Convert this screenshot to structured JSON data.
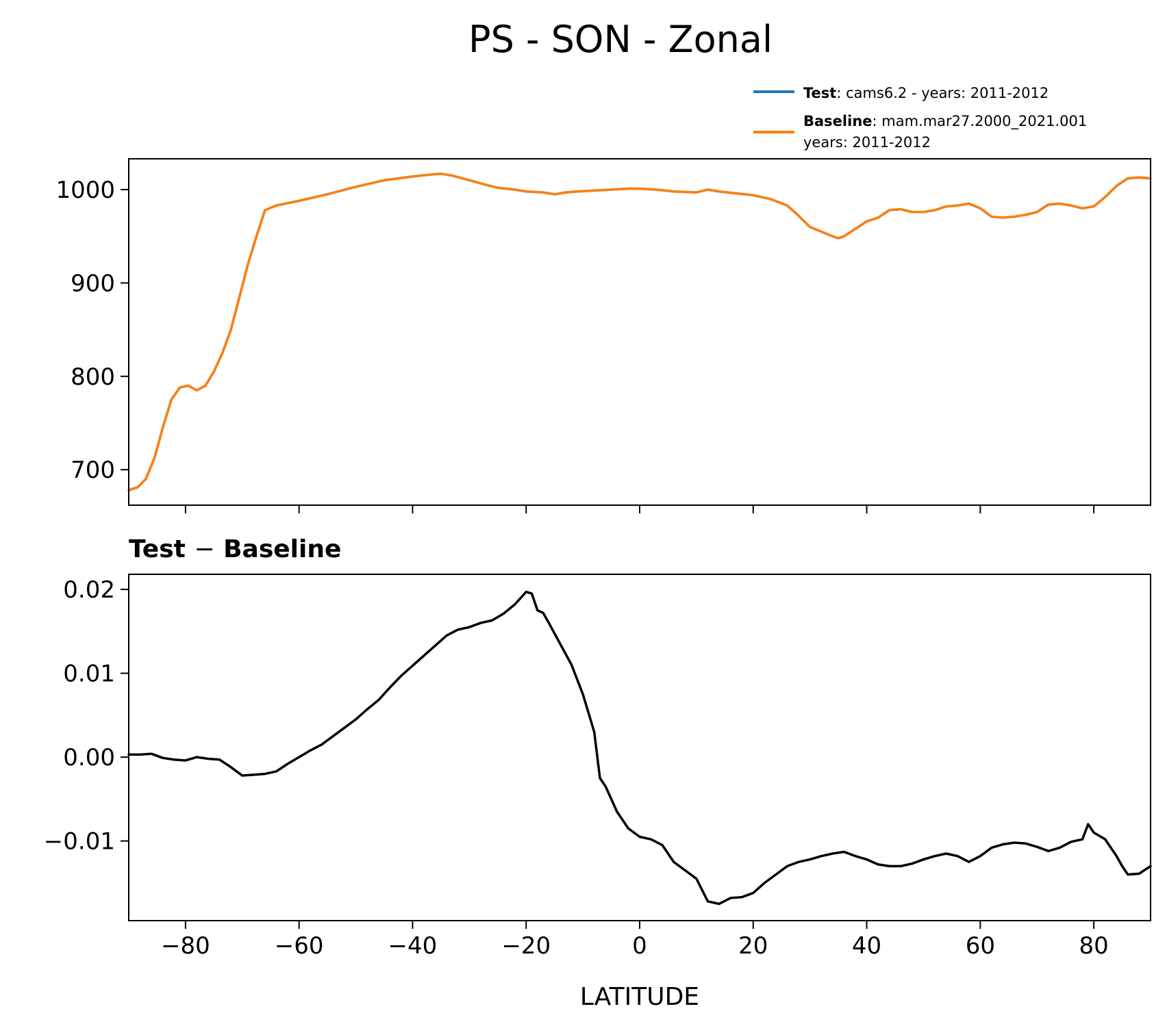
{
  "figure": {
    "title": "PS - SON - Zonal"
  },
  "legend": {
    "test_label": "Test",
    "test_text": ": cams6.2 - years: 2011-2012",
    "baseline_label": "Baseline",
    "baseline_text": ": mam.mar27.2000_2021.001",
    "baseline_text2": "years: 2011-2012"
  },
  "diff_title_test": "Test",
  "diff_title_minus": "−",
  "diff_title_baseline": "Baseline",
  "chart_data": [
    {
      "type": "line",
      "name": "zonal-ps",
      "title": "PS - SON - Zonal",
      "xlabel": "",
      "ylabel": "",
      "xlim": [
        -90,
        90
      ],
      "ylim": [
        662,
        1033
      ],
      "xticks": [
        -80,
        -60,
        -40,
        -20,
        0,
        20,
        40,
        60,
        80
      ],
      "yticks": [
        700,
        800,
        900,
        1000
      ],
      "ytick_labels": [
        "700",
        "800",
        "900",
        "1000"
      ],
      "legend_position": "top-right",
      "series": [
        {
          "name": "Test",
          "color": "#1f77b4",
          "x": [
            -90,
            -88.5,
            -87,
            -85.5,
            -84,
            -82.5,
            -81,
            -79.5,
            -78,
            -76.5,
            -75,
            -73.5,
            -72,
            -70.5,
            -69,
            -67.5,
            -66,
            -64,
            -60,
            -55,
            -50,
            -45,
            -40,
            -37,
            -35,
            -33,
            -30,
            -27,
            -25,
            -22,
            -20,
            -17,
            -15,
            -13,
            -11,
            -8,
            -5,
            -2,
            0,
            3,
            6,
            10,
            12,
            14,
            17,
            20,
            23,
            26,
            28,
            30,
            32,
            34,
            35,
            36,
            38,
            40,
            42,
            44,
            46,
            48,
            50,
            52,
            54,
            56,
            58,
            60,
            62,
            64,
            66,
            68,
            70,
            72,
            74,
            76,
            78,
            80,
            82,
            84,
            86,
            88,
            90
          ],
          "y": [
            678,
            681,
            690,
            712,
            745,
            775,
            788,
            790,
            785,
            790,
            805,
            825,
            850,
            885,
            920,
            950,
            978,
            983,
            988,
            995,
            1003,
            1010,
            1014,
            1016,
            1017,
            1015,
            1010,
            1005,
            1002,
            1000,
            998,
            997,
            995,
            997,
            998,
            999,
            1000,
            1001,
            1001,
            1000,
            998,
            997,
            1000,
            998,
            996,
            994,
            990,
            983,
            972,
            960,
            955,
            950,
            948,
            950,
            958,
            966,
            970,
            978,
            979,
            976,
            976,
            978,
            982,
            983,
            985,
            980,
            971,
            970,
            971,
            973,
            976,
            984,
            985,
            983,
            980,
            982,
            992,
            1004,
            1012,
            1013,
            1012
          ]
        },
        {
          "name": "Baseline",
          "color": "#ff7f0e",
          "x": [
            -90,
            -88.5,
            -87,
            -85.5,
            -84,
            -82.5,
            -81,
            -79.5,
            -78,
            -76.5,
            -75,
            -73.5,
            -72,
            -70.5,
            -69,
            -67.5,
            -66,
            -64,
            -60,
            -55,
            -50,
            -45,
            -40,
            -37,
            -35,
            -33,
            -30,
            -27,
            -25,
            -22,
            -20,
            -17,
            -15,
            -13,
            -11,
            -8,
            -5,
            -2,
            0,
            3,
            6,
            10,
            12,
            14,
            17,
            20,
            23,
            26,
            28,
            30,
            32,
            34,
            35,
            36,
            38,
            40,
            42,
            44,
            46,
            48,
            50,
            52,
            54,
            56,
            58,
            60,
            62,
            64,
            66,
            68,
            70,
            72,
            74,
            76,
            78,
            80,
            82,
            84,
            86,
            88,
            90
          ],
          "y": [
            678,
            681,
            690,
            712,
            745,
            775,
            788,
            790,
            785,
            790,
            805,
            825,
            850,
            885,
            920,
            950,
            978,
            983,
            988,
            995,
            1003,
            1010,
            1014,
            1016,
            1017,
            1015,
            1010,
            1005,
            1002,
            1000,
            998,
            997,
            995,
            997,
            998,
            999,
            1000,
            1001,
            1001,
            1000,
            998,
            997,
            1000,
            998,
            996,
            994,
            990,
            983,
            972,
            960,
            955,
            950,
            948,
            950,
            958,
            966,
            970,
            978,
            979,
            976,
            976,
            978,
            982,
            983,
            985,
            980,
            971,
            970,
            971,
            973,
            976,
            984,
            985,
            983,
            980,
            982,
            992,
            1004,
            1012,
            1013,
            1012
          ]
        }
      ]
    },
    {
      "type": "line",
      "name": "difference",
      "title": "Test − Baseline",
      "xlabel": "LATITUDE",
      "ylabel": "",
      "xlim": [
        -90,
        90
      ],
      "ylim": [
        -0.0195,
        0.0218
      ],
      "xticks": [
        -80,
        -60,
        -40,
        -20,
        0,
        20,
        40,
        60,
        80
      ],
      "xtick_labels": [
        "−80",
        "−60",
        "−40",
        "−20",
        "0",
        "20",
        "40",
        "60",
        "80"
      ],
      "yticks": [
        -0.01,
        0.0,
        0.01,
        0.02
      ],
      "ytick_labels": [
        "−0.01",
        "0.00",
        "0.01",
        "0.02"
      ],
      "series": [
        {
          "name": "Test - Baseline",
          "color": "#000000",
          "x": [
            -90,
            -88,
            -86,
            -84,
            -82,
            -80,
            -78,
            -76,
            -74,
            -72,
            -70,
            -68,
            -66,
            -64,
            -62,
            -60,
            -58,
            -56,
            -54,
            -52,
            -50,
            -48,
            -46,
            -44,
            -42,
            -40,
            -38,
            -36,
            -34,
            -32,
            -30,
            -28,
            -26,
            -24,
            -22,
            -20,
            -19,
            -18,
            -17,
            -16,
            -14,
            -12,
            -10,
            -8,
            -7,
            -6,
            -4,
            -2,
            0,
            2,
            4,
            6,
            8,
            10,
            12,
            14,
            16,
            18,
            20,
            22,
            24,
            26,
            28,
            30,
            32,
            34,
            36,
            38,
            40,
            42,
            44,
            46,
            48,
            50,
            52,
            54,
            56,
            58,
            60,
            62,
            64,
            66,
            68,
            70,
            72,
            74,
            76,
            78,
            79,
            80,
            82,
            84,
            85,
            86,
            88,
            90
          ],
          "y": [
            0.0003,
            0.0003,
            0.0004,
            -0.0001,
            -0.0003,
            -0.0004,
            0.0,
            -0.0002,
            -0.0003,
            -0.0012,
            -0.0022,
            -0.0021,
            -0.002,
            -0.0017,
            -0.0008,
            0.0,
            0.0008,
            0.0015,
            0.0025,
            0.0035,
            0.0045,
            0.0057,
            0.0068,
            0.0083,
            0.0097,
            0.0109,
            0.0121,
            0.0133,
            0.0145,
            0.0152,
            0.0155,
            0.016,
            0.0163,
            0.0171,
            0.0182,
            0.0197,
            0.0195,
            0.0175,
            0.0172,
            0.016,
            0.0135,
            0.011,
            0.0075,
            0.003,
            -0.0025,
            -0.0035,
            -0.0065,
            -0.0085,
            -0.0095,
            -0.0098,
            -0.0105,
            -0.0125,
            -0.0135,
            -0.0145,
            -0.0172,
            -0.0175,
            -0.0168,
            -0.0167,
            -0.0162,
            -0.015,
            -0.014,
            -0.013,
            -0.0125,
            -0.0122,
            -0.0118,
            -0.0115,
            -0.0113,
            -0.0118,
            -0.0122,
            -0.0128,
            -0.013,
            -0.013,
            -0.0127,
            -0.0122,
            -0.0118,
            -0.0115,
            -0.0118,
            -0.0125,
            -0.0118,
            -0.0108,
            -0.0104,
            -0.0102,
            -0.0103,
            -0.0107,
            -0.0112,
            -0.0108,
            -0.0101,
            -0.0098,
            -0.008,
            -0.009,
            -0.0098,
            -0.0118,
            -0.013,
            -0.014,
            -0.0139,
            -0.013
          ]
        }
      ]
    }
  ]
}
